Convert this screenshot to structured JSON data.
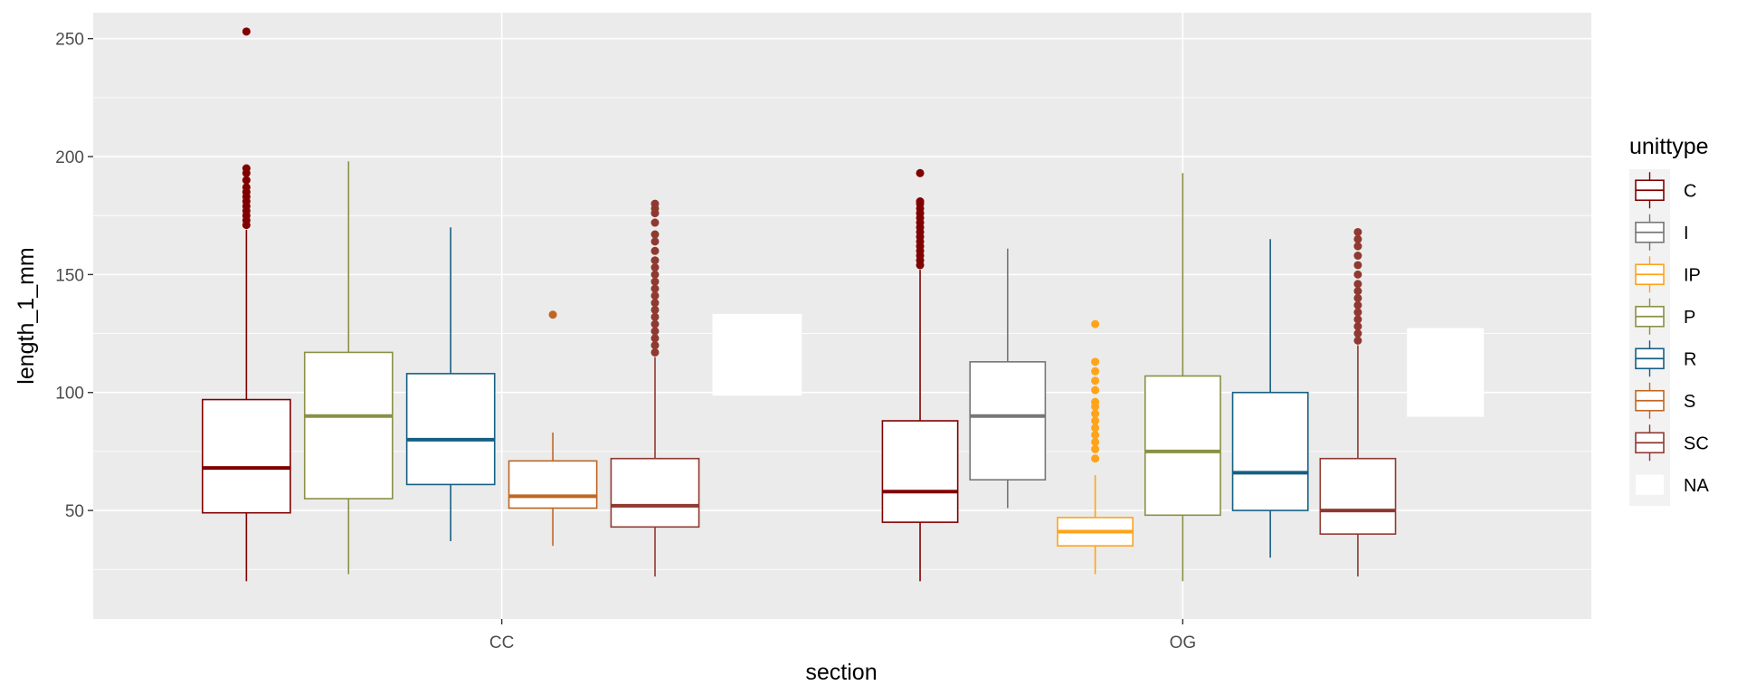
{
  "chart_data": {
    "type": "boxplot",
    "title": "",
    "xlabel": "section",
    "ylabel": "length_1_mm",
    "ylim": [
      4,
      261
    ],
    "y_ticks": [
      50,
      100,
      150,
      200,
      250
    ],
    "categories": [
      "CC",
      "OG"
    ],
    "legend": {
      "title": "unittype",
      "position": "right",
      "entries": [
        {
          "label": "C",
          "color": "#800000"
        },
        {
          "label": "I",
          "color": "#767676"
        },
        {
          "label": "IP",
          "color": "#FFA319"
        },
        {
          "label": "P",
          "color": "#8A9045"
        },
        {
          "label": "R",
          "color": "#155F83"
        },
        {
          "label": "S",
          "color": "#C16622"
        },
        {
          "label": "SC",
          "color": "#8F3931"
        },
        {
          "label": "NA",
          "color": "#FFFFFF"
        }
      ]
    },
    "series": [
      {
        "section": "CC",
        "unittype": "C",
        "color": "#800000",
        "min": 20,
        "q1": 49,
        "median": 68,
        "q3": 97,
        "max": 169,
        "outliers": [
          171,
          173,
          175,
          177,
          179,
          181,
          183,
          185,
          187,
          190,
          193,
          195,
          253
        ]
      },
      {
        "section": "CC",
        "unittype": "P",
        "color": "#8A9045",
        "min": 23,
        "q1": 55,
        "median": 90,
        "q3": 117,
        "max": 198,
        "outliers": []
      },
      {
        "section": "CC",
        "unittype": "R",
        "color": "#155F83",
        "min": 37,
        "q1": 61,
        "median": 80,
        "q3": 108,
        "max": 170,
        "outliers": []
      },
      {
        "section": "CC",
        "unittype": "S",
        "color": "#C16622",
        "min": 35,
        "q1": 51,
        "median": 56,
        "q3": 71,
        "max": 83,
        "outliers": [
          133
        ]
      },
      {
        "section": "CC",
        "unittype": "SC",
        "color": "#8F3931",
        "min": 22,
        "q1": 43,
        "median": 52,
        "q3": 72,
        "max": 115,
        "outliers": [
          117,
          120,
          123,
          126,
          129,
          132,
          135,
          138,
          141,
          144,
          147,
          150,
          153,
          156,
          160,
          164,
          167,
          172,
          176,
          178,
          180
        ]
      },
      {
        "section": "CC",
        "unittype": "NA",
        "color": "#FFFFFF",
        "min": 99,
        "q1": 99,
        "median": 110,
        "q3": 133,
        "max": 133,
        "outliers": []
      },
      {
        "section": "OG",
        "unittype": "C",
        "color": "#800000",
        "min": 20,
        "q1": 45,
        "median": 58,
        "q3": 88,
        "max": 152,
        "outliers": [
          154,
          156,
          158,
          160,
          162,
          164,
          166,
          168,
          170,
          172,
          174,
          176,
          178,
          180,
          181,
          193
        ]
      },
      {
        "section": "OG",
        "unittype": "I",
        "color": "#767676",
        "min": 51,
        "q1": 63,
        "median": 90,
        "q3": 113,
        "max": 161,
        "outliers": []
      },
      {
        "section": "OG",
        "unittype": "IP",
        "color": "#FFA319",
        "min": 23,
        "q1": 35,
        "median": 41,
        "q3": 47,
        "max": 65,
        "outliers": [
          72,
          76,
          79,
          82,
          85,
          88,
          91,
          94,
          96,
          101,
          105,
          109,
          113,
          129
        ]
      },
      {
        "section": "OG",
        "unittype": "P",
        "color": "#8A9045",
        "min": 20,
        "q1": 48,
        "median": 75,
        "q3": 107,
        "max": 193,
        "outliers": []
      },
      {
        "section": "OG",
        "unittype": "R",
        "color": "#155F83",
        "min": 30,
        "q1": 50,
        "median": 66,
        "q3": 100,
        "max": 165,
        "outliers": []
      },
      {
        "section": "OG",
        "unittype": "SC",
        "color": "#8F3931",
        "min": 22,
        "q1": 40,
        "median": 50,
        "q3": 72,
        "max": 120,
        "outliers": [
          122,
          125,
          128,
          131,
          134,
          137,
          140,
          143,
          146,
          150,
          154,
          158,
          162,
          165,
          168
        ]
      },
      {
        "section": "OG",
        "unittype": "NA",
        "color": "#FFFFFF",
        "min": 90,
        "q1": 90,
        "median": 100,
        "q3": 127,
        "max": 127,
        "outliers": []
      }
    ]
  }
}
